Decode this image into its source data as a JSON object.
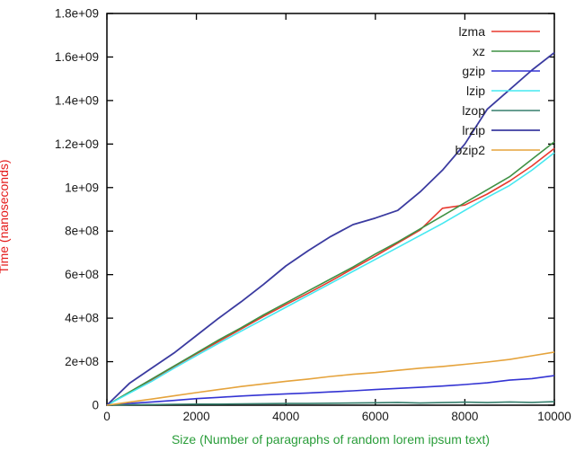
{
  "chart_data": {
    "type": "line",
    "title": "",
    "xlabel": "Size (Number of paragraphs of random lorem ipsum text)",
    "ylabel": "Time (nanoseconds)",
    "xlabel_color": "#2a9d3a",
    "ylabel_color": "#e41a1a",
    "frame_color": "#000000",
    "background_color": "#ffffff",
    "grid": false,
    "legend_position": "top-right-inside",
    "xlim": [
      0,
      10000
    ],
    "ylim": [
      0,
      1800000000
    ],
    "x_ticks": [
      0,
      2000,
      4000,
      6000,
      8000,
      10000
    ],
    "x_tick_labels": [
      "0",
      "2000",
      "4000",
      "6000",
      "8000",
      "10000"
    ],
    "y_ticks": [
      0,
      200000000,
      400000000,
      600000000,
      800000000,
      1000000000,
      1200000000,
      1400000000,
      1600000000,
      1800000000
    ],
    "y_tick_labels": [
      "0",
      "2e+08",
      "4e+08",
      "6e+08",
      "8e+08",
      "1e+09",
      "1.2e+09",
      "1.4e+09",
      "1.6e+09",
      "1.8e+09"
    ],
    "x": [
      0,
      500,
      1000,
      1500,
      2000,
      2500,
      3000,
      3500,
      4000,
      4500,
      5000,
      5500,
      6000,
      6500,
      7000,
      7500,
      8000,
      8500,
      9000,
      9500,
      10000
    ],
    "series": [
      {
        "name": "lzma",
        "color": "#e8392f",
        "width": 1.6,
        "values": [
          0,
          58000000.0,
          117000000.0,
          177000000.0,
          236000000.0,
          293000000.0,
          350000000.0,
          408000000.0,
          462000000.0,
          515000000.0,
          570000000.0,
          628000000.0,
          685000000.0,
          745000000.0,
          805000000.0,
          905000000.0,
          920000000.0,
          970000000.0,
          1030000000.0,
          1100000000.0,
          1180000000.0
        ]
      },
      {
        "name": "xz",
        "color": "#3f9144",
        "width": 1.6,
        "values": [
          0,
          60000000.0,
          120000000.0,
          180000000.0,
          240000000.0,
          300000000.0,
          356000000.0,
          415000000.0,
          470000000.0,
          525000000.0,
          580000000.0,
          635000000.0,
          695000000.0,
          750000000.0,
          810000000.0,
          870000000.0,
          930000000.0,
          990000000.0,
          1050000000.0,
          1130000000.0,
          1210000000.0
        ]
      },
      {
        "name": "gzip",
        "color": "#3434d3",
        "width": 1.6,
        "values": [
          0,
          8000000.0,
          15000000.0,
          22000000.0,
          30000000.0,
          36000000.0,
          42000000.0,
          47000000.0,
          52000000.0,
          56000000.0,
          61000000.0,
          66000000.0,
          72000000.0,
          77000000.0,
          82000000.0,
          88000000.0,
          95000000.0,
          103000000.0,
          115000000.0,
          122000000.0,
          136000000.0
        ]
      },
      {
        "name": "lzip",
        "color": "#45e8f0",
        "width": 1.6,
        "values": [
          0,
          55000000.0,
          110000000.0,
          170000000.0,
          228000000.0,
          285000000.0,
          340000000.0,
          395000000.0,
          450000000.0,
          505000000.0,
          560000000.0,
          615000000.0,
          670000000.0,
          725000000.0,
          780000000.0,
          835000000.0,
          895000000.0,
          955000000.0,
          1010000000.0,
          1080000000.0,
          1160000000.0
        ]
      },
      {
        "name": "lzop",
        "color": "#357f6d",
        "width": 1.6,
        "values": [
          0,
          2000000.0,
          3000000.0,
          4000000.0,
          5000000.0,
          5000000.0,
          6000000.0,
          7000000.0,
          8000000.0,
          8000000.0,
          9000000.0,
          10000000.0,
          11000000.0,
          13000000.0,
          10000000.0,
          12000000.0,
          14000000.0,
          12000000.0,
          15000000.0,
          13000000.0,
          16000000.0
        ]
      },
      {
        "name": "lrzip",
        "color": "#3b3ba0",
        "width": 1.8,
        "values": [
          0,
          100000000.0,
          170000000.0,
          240000000.0,
          320000000.0,
          400000000.0,
          475000000.0,
          555000000.0,
          640000000.0,
          710000000.0,
          775000000.0,
          830000000.0,
          860000000.0,
          895000000.0,
          980000000.0,
          1080000000.0,
          1200000000.0,
          1360000000.0,
          1450000000.0,
          1540000000.0,
          1620000000.0
        ]
      },
      {
        "name": "bzip2",
        "color": "#e5a33c",
        "width": 1.6,
        "values": [
          0,
          14000000.0,
          28000000.0,
          43000000.0,
          58000000.0,
          72000000.0,
          86000000.0,
          98000000.0,
          110000000.0,
          120000000.0,
          132000000.0,
          142000000.0,
          150000000.0,
          160000000.0,
          170000000.0,
          178000000.0,
          188000000.0,
          198000000.0,
          210000000.0,
          227000000.0,
          244000000.0
        ]
      }
    ]
  }
}
